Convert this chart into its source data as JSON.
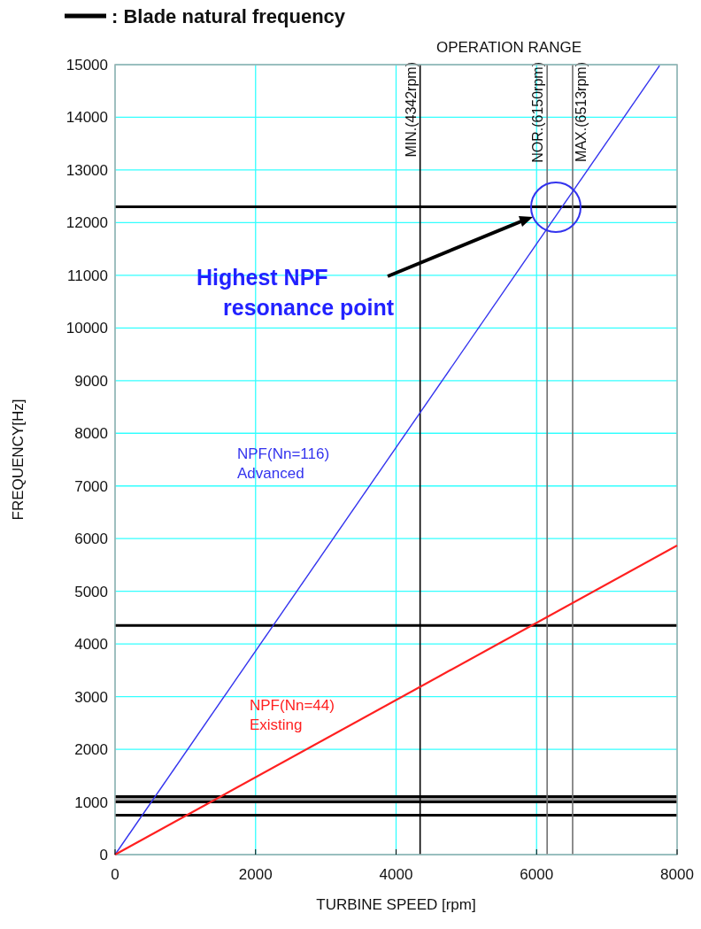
{
  "chart_data": {
    "type": "line",
    "legend_title": ": Blade natural frequency",
    "xlabel": "TURBINE SPEED [rpm]",
    "ylabel": "FREQUENCY[Hz]",
    "xlim": [
      0,
      8000
    ],
    "xticks": [
      0,
      2000,
      4000,
      6000,
      8000
    ],
    "ylim": [
      0,
      15000
    ],
    "yticks": [
      0,
      1000,
      2000,
      3000,
      4000,
      5000,
      6000,
      7000,
      8000,
      9000,
      10000,
      11000,
      12000,
      13000,
      14000,
      15000
    ],
    "grid": true,
    "series": [
      {
        "name": "NPF(Nn=116)\nAdvanced",
        "color": "#3333ee",
        "x": [
          0,
          7750
        ],
        "values": [
          0,
          14980
        ]
      },
      {
        "name": "NPF(Nn=44)\nExisting",
        "color": "#ff2020",
        "x": [
          0,
          8000
        ],
        "values": [
          0,
          5870
        ]
      }
    ],
    "bands": [
      {
        "axis": "y",
        "from": 1000,
        "to": 1100,
        "color": "#a0a0a0"
      }
    ],
    "ref_lines": [
      {
        "axis": "y",
        "value": 12300,
        "color": "#000000"
      },
      {
        "axis": "y",
        "value": 4350,
        "color": "#000000"
      },
      {
        "axis": "y",
        "value": 1100,
        "color": "#000000"
      },
      {
        "axis": "y",
        "value": 1000,
        "color": "#000000"
      },
      {
        "axis": "y",
        "value": 750,
        "color": "#000000"
      },
      {
        "axis": "x",
        "value": 4342,
        "label": "MIN.(4342rpm)",
        "color": "#000000"
      },
      {
        "axis": "x",
        "value": 6150,
        "label": "NOR.(6150rpm)",
        "color": "#707070"
      },
      {
        "axis": "x",
        "value": 6513,
        "label": "MAX.(6513rpm)",
        "color": "#707070"
      }
    ],
    "annotations": [
      "OPERATION  RANGE",
      "Highest NPF\nresonance point"
    ]
  }
}
